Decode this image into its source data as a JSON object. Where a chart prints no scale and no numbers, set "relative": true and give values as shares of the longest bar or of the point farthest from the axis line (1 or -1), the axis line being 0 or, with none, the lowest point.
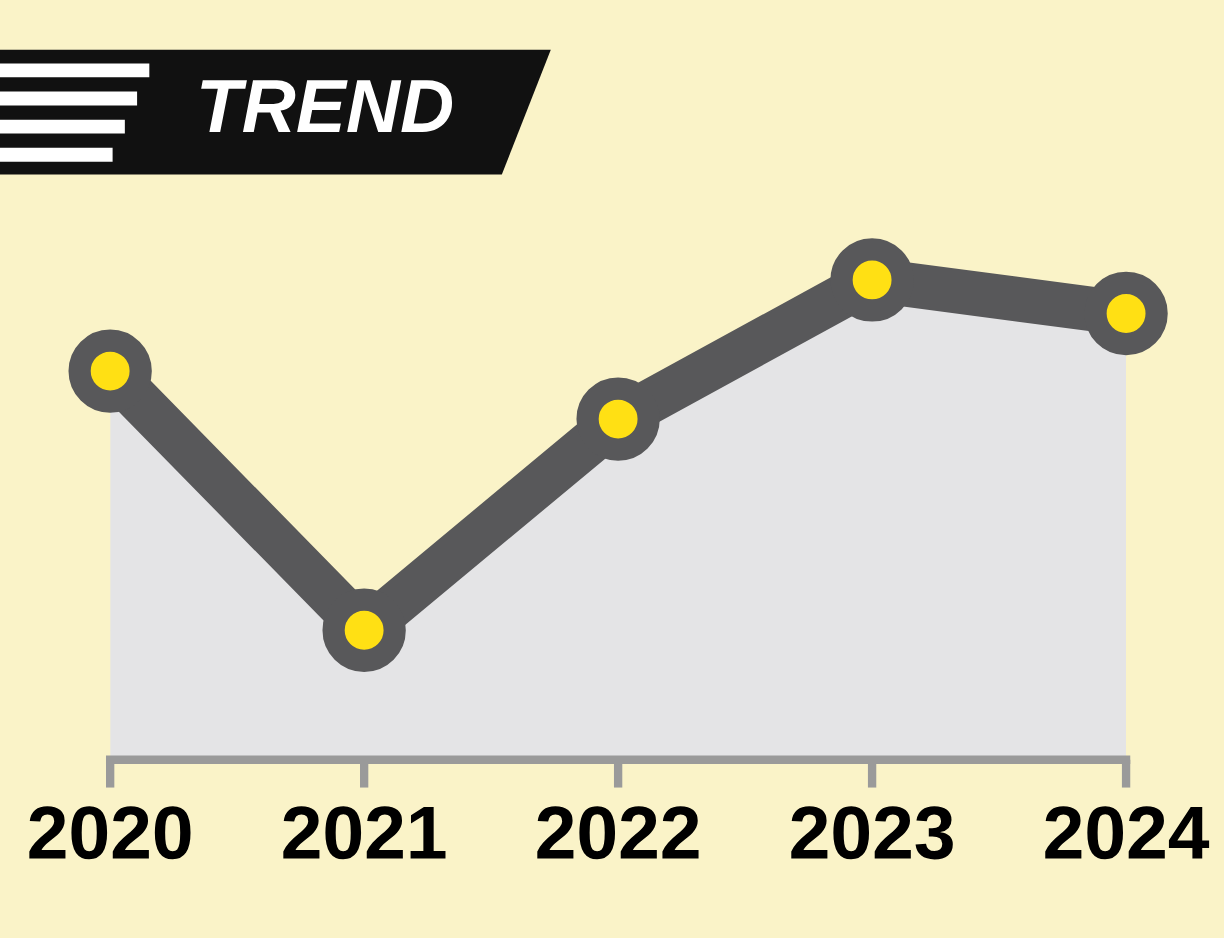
{
  "chart_data": {
    "type": "area",
    "title": "TREND",
    "relative": true,
    "marker": "circle",
    "grid": false,
    "legend": false,
    "categories": [
      "2020",
      "2021",
      "2022",
      "2023",
      "2024"
    ],
    "series": [
      {
        "color": "#58585a",
        "values": [
          0.81,
          0.27,
          0.71,
          1.0,
          0.93
        ]
      }
    ]
  }
}
